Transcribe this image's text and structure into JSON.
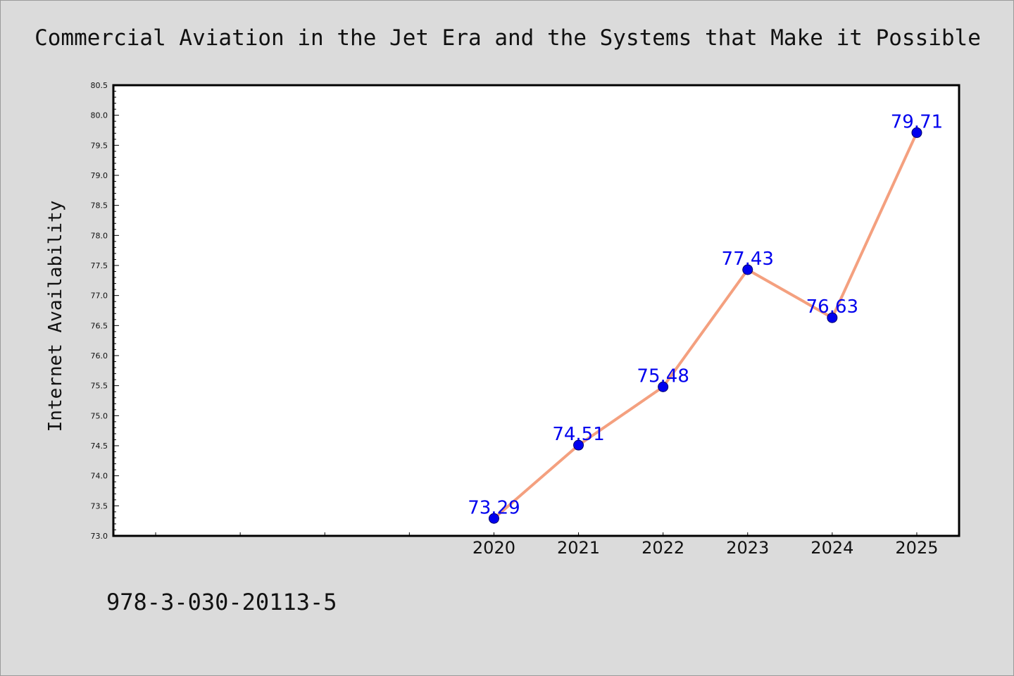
{
  "chart_data": {
    "type": "line",
    "title": "Commercial Aviation in the Jet Era and the Systems that Make it Possible",
    "xlabel": "",
    "ylabel": "Internet Availability",
    "x": [
      2020,
      2021,
      2022,
      2023,
      2024,
      2025
    ],
    "x_tick_labels": [
      "2020",
      "2021",
      "2022",
      "2023",
      "2024",
      "2025"
    ],
    "series": [
      {
        "values": [
          73.29,
          74.51,
          75.48,
          77.43,
          76.63,
          79.71
        ],
        "data_labels": [
          "73.29",
          "74.51",
          "75.48",
          "77.43",
          "76.63",
          "79.71"
        ]
      }
    ],
    "xlim": [
      2015.5,
      2025.5
    ],
    "ylim": [
      73.0,
      80.5
    ],
    "y_ticks": [
      "73.0",
      "73.5",
      "74.0",
      "74.5",
      "75.0",
      "75.5",
      "76.0",
      "76.5",
      "77.0",
      "77.5",
      "78.0",
      "78.5",
      "79.0",
      "79.5",
      "80.0",
      "80.5"
    ],
    "grid": false,
    "legend": "none",
    "colors": {
      "line": "#f4a07f",
      "marker": "#0000ee",
      "label": "#0000ee",
      "background": "#dbdbdb",
      "plot_background": "#ffffff"
    }
  },
  "footer": {
    "isbn": "978-3-030-20113-5"
  }
}
